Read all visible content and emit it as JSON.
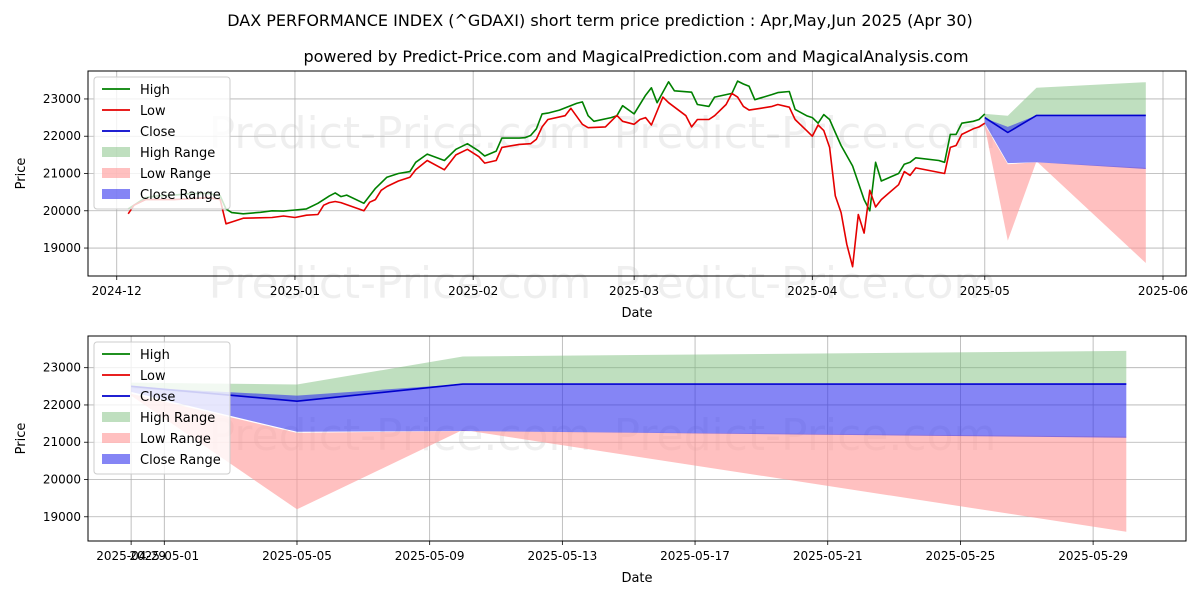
{
  "title": "DAX PERFORMANCE INDEX (^GDAXI) short term price prediction : Apr,May,Jun 2025 (Apr 30)",
  "subtitle": "powered by Predict-Price.com and MagicalPrediction.com and MagicalAnalysis.com",
  "watermark": "Predict-Price.com",
  "colors": {
    "high": "#008000",
    "low": "#e50000",
    "close": "#0000cc",
    "high_range": "#7fbf7f",
    "low_range": "#ff9999",
    "close_range": "#3333ee"
  },
  "chart_data": [
    {
      "type": "line",
      "name": "history-and-forecast",
      "xlabel": "Date",
      "ylabel": "Price",
      "x_ticks": [
        {
          "day": 0,
          "label": "2024-12"
        },
        {
          "day": 31,
          "label": "2025-01"
        },
        {
          "day": 62,
          "label": "2025-02"
        },
        {
          "day": 90,
          "label": "2025-03"
        },
        {
          "day": 121,
          "label": "2025-04"
        },
        {
          "day": 151,
          "label": "2025-05"
        },
        {
          "day": 182,
          "label": "2025-06"
        }
      ],
      "y_ticks": [
        19000,
        20000,
        21000,
        22000,
        23000
      ],
      "xlim": [
        -5,
        186
      ],
      "ylim": [
        18250,
        23750
      ],
      "legend": [
        "High",
        "Low",
        "Close",
        "High Range",
        "Low Range",
        "Close Range"
      ],
      "high_series": [
        [
          2,
          20050
        ],
        [
          5,
          20350
        ],
        [
          7,
          20400
        ],
        [
          10,
          20420
        ],
        [
          13,
          20460
        ],
        [
          16,
          20470
        ],
        [
          18,
          20400
        ],
        [
          19,
          20050
        ],
        [
          20,
          19950
        ],
        [
          22,
          19920
        ],
        [
          25,
          19960
        ],
        [
          27,
          20000
        ],
        [
          29,
          19990
        ],
        [
          31,
          20020
        ],
        [
          33,
          20050
        ],
        [
          35,
          20200
        ],
        [
          37,
          20400
        ],
        [
          38,
          20480
        ],
        [
          39,
          20380
        ],
        [
          40,
          20420
        ],
        [
          43,
          20200
        ],
        [
          45,
          20600
        ],
        [
          47,
          20900
        ],
        [
          49,
          21000
        ],
        [
          51,
          21050
        ],
        [
          52,
          21300
        ],
        [
          54,
          21520
        ],
        [
          57,
          21350
        ],
        [
          59,
          21650
        ],
        [
          61,
          21800
        ],
        [
          63,
          21600
        ],
        [
          64,
          21470
        ],
        [
          66,
          21600
        ],
        [
          67,
          21950
        ],
        [
          70,
          21950
        ],
        [
          71,
          21960
        ],
        [
          72,
          22020
        ],
        [
          73,
          22200
        ],
        [
          74,
          22600
        ],
        [
          75,
          22620
        ],
        [
          77,
          22700
        ],
        [
          80,
          22880
        ],
        [
          81,
          22920
        ],
        [
          82,
          22550
        ],
        [
          83,
          22400
        ],
        [
          86,
          22500
        ],
        [
          87,
          22550
        ],
        [
          88,
          22820
        ],
        [
          90,
          22600
        ],
        [
          92,
          23100
        ],
        [
          93,
          23300
        ],
        [
          94,
          22900
        ],
        [
          96,
          23460
        ],
        [
          97,
          23220
        ],
        [
          100,
          23180
        ],
        [
          101,
          22850
        ],
        [
          103,
          22800
        ],
        [
          104,
          23050
        ],
        [
          107,
          23150
        ],
        [
          108,
          23480
        ],
        [
          109,
          23400
        ],
        [
          110,
          23340
        ],
        [
          111,
          22980
        ],
        [
          114,
          23120
        ],
        [
          115,
          23170
        ],
        [
          117,
          23200
        ],
        [
          118,
          22720
        ],
        [
          120,
          22550
        ],
        [
          121,
          22500
        ],
        [
          122,
          22350
        ],
        [
          123,
          22580
        ],
        [
          124,
          22450
        ],
        [
          125,
          22100
        ],
        [
          126,
          21750
        ],
        [
          128,
          21200
        ],
        [
          130,
          20300
        ],
        [
          131,
          20000
        ],
        [
          132,
          21300
        ],
        [
          133,
          20800
        ],
        [
          136,
          21000
        ],
        [
          137,
          21250
        ],
        [
          138,
          21300
        ],
        [
          139,
          21420
        ],
        [
          143,
          21350
        ],
        [
          144,
          21300
        ],
        [
          145,
          22050
        ],
        [
          146,
          22050
        ],
        [
          147,
          22350
        ],
        [
          149,
          22400
        ],
        [
          150,
          22450
        ],
        [
          151,
          22600
        ]
      ],
      "low_series": [
        [
          2,
          19920
        ],
        [
          3,
          20150
        ],
        [
          5,
          20300
        ],
        [
          10,
          20300
        ],
        [
          16,
          20350
        ],
        [
          18,
          20300
        ],
        [
          19,
          19650
        ],
        [
          20,
          19700
        ],
        [
          22,
          19800
        ],
        [
          27,
          19820
        ],
        [
          29,
          19860
        ],
        [
          31,
          19820
        ],
        [
          33,
          19880
        ],
        [
          35,
          19900
        ],
        [
          36,
          20150
        ],
        [
          37,
          20220
        ],
        [
          38,
          20250
        ],
        [
          39,
          20220
        ],
        [
          43,
          20000
        ],
        [
          44,
          20230
        ],
        [
          45,
          20300
        ],
        [
          46,
          20550
        ],
        [
          47,
          20650
        ],
        [
          49,
          20800
        ],
        [
          51,
          20900
        ],
        [
          52,
          21100
        ],
        [
          54,
          21350
        ],
        [
          57,
          21100
        ],
        [
          59,
          21500
        ],
        [
          61,
          21650
        ],
        [
          63,
          21450
        ],
        [
          64,
          21280
        ],
        [
          66,
          21350
        ],
        [
          67,
          21700
        ],
        [
          70,
          21780
        ],
        [
          72,
          21800
        ],
        [
          73,
          21920
        ],
        [
          74,
          22250
        ],
        [
          75,
          22450
        ],
        [
          78,
          22550
        ],
        [
          79,
          22750
        ],
        [
          81,
          22320
        ],
        [
          82,
          22230
        ],
        [
          85,
          22250
        ],
        [
          87,
          22560
        ],
        [
          88,
          22400
        ],
        [
          90,
          22320
        ],
        [
          91,
          22450
        ],
        [
          92,
          22500
        ],
        [
          93,
          22300
        ],
        [
          95,
          23050
        ],
        [
          96,
          22900
        ],
        [
          99,
          22550
        ],
        [
          100,
          22250
        ],
        [
          101,
          22450
        ],
        [
          103,
          22450
        ],
        [
          104,
          22550
        ],
        [
          106,
          22850
        ],
        [
          107,
          23150
        ],
        [
          108,
          23050
        ],
        [
          109,
          22800
        ],
        [
          110,
          22700
        ],
        [
          112,
          22750
        ],
        [
          114,
          22800
        ],
        [
          115,
          22850
        ],
        [
          117,
          22780
        ],
        [
          118,
          22450
        ],
        [
          120,
          22150
        ],
        [
          121,
          22000
        ],
        [
          122,
          22300
        ],
        [
          123,
          22150
        ],
        [
          124,
          21700
        ],
        [
          125,
          20400
        ],
        [
          126,
          19950
        ],
        [
          127,
          19100
        ],
        [
          128,
          18500
        ],
        [
          129,
          19900
        ],
        [
          130,
          19400
        ],
        [
          131,
          20550
        ],
        [
          132,
          20100
        ],
        [
          133,
          20300
        ],
        [
          136,
          20700
        ],
        [
          137,
          21050
        ],
        [
          138,
          20950
        ],
        [
          139,
          21150
        ],
        [
          144,
          21000
        ],
        [
          145,
          21700
        ],
        [
          146,
          21750
        ],
        [
          147,
          22050
        ],
        [
          149,
          22200
        ],
        [
          150,
          22250
        ],
        [
          151,
          22350
        ]
      ],
      "close_forecast": [
        [
          151,
          22500
        ],
        [
          155,
          22100
        ],
        [
          160,
          22560
        ],
        [
          179,
          22560
        ]
      ],
      "high_range": {
        "upper": [
          [
            151,
            22600
          ],
          [
            155,
            22550
          ],
          [
            160,
            23300
          ],
          [
            179,
            23450
          ]
        ],
        "lower": [
          [
            151,
            22450
          ],
          [
            155,
            22100
          ],
          [
            160,
            22580
          ],
          [
            179,
            22580
          ]
        ]
      },
      "low_range": {
        "upper": [
          [
            151,
            22300
          ],
          [
            155,
            21250
          ],
          [
            160,
            21300
          ],
          [
            179,
            21150
          ]
        ],
        "lower": [
          [
            151,
            22250
          ],
          [
            155,
            19200
          ],
          [
            160,
            21330
          ],
          [
            179,
            18600
          ]
        ]
      },
      "close_range": {
        "upper": [
          [
            151,
            22480
          ],
          [
            155,
            22250
          ],
          [
            160,
            22560
          ],
          [
            179,
            22580
          ]
        ],
        "lower": [
          [
            151,
            22350
          ],
          [
            155,
            21280
          ],
          [
            160,
            21300
          ],
          [
            179,
            21120
          ]
        ]
      }
    },
    {
      "type": "line",
      "name": "forecast-zoom",
      "xlabel": "Date",
      "ylabel": "Price",
      "x_ticks": [
        {
          "day": -1,
          "label": "2025-04-29"
        },
        {
          "day": 0,
          "label": "2025-05-01"
        },
        {
          "day": 4,
          "label": "2025-05-05"
        },
        {
          "day": 8,
          "label": "2025-05-09"
        },
        {
          "day": 12,
          "label": "2025-05-13"
        },
        {
          "day": 16,
          "label": "2025-05-17"
        },
        {
          "day": 20,
          "label": "2025-05-21"
        },
        {
          "day": 24,
          "label": "2025-05-25"
        },
        {
          "day": 28,
          "label": "2025-05-29"
        }
      ],
      "y_ticks": [
        19000,
        20000,
        21000,
        22000,
        23000
      ],
      "xlim": [
        -2.3,
        30.8
      ],
      "ylim": [
        18350,
        23850
      ],
      "legend": [
        "High",
        "Low",
        "Close",
        "High Range",
        "Low Range",
        "Close Range"
      ],
      "close_forecast": [
        [
          -1,
          22500
        ],
        [
          4,
          22100
        ],
        [
          9,
          22560
        ],
        [
          29,
          22560
        ]
      ],
      "high_range": {
        "upper": [
          [
            -1,
            22600
          ],
          [
            4,
            22550
          ],
          [
            9,
            23300
          ],
          [
            29,
            23450
          ]
        ],
        "lower": [
          [
            -1,
            22450
          ],
          [
            4,
            22100
          ],
          [
            9,
            22580
          ],
          [
            29,
            22580
          ]
        ]
      },
      "low_range": {
        "upper": [
          [
            -1,
            22300
          ],
          [
            4,
            21250
          ],
          [
            9,
            21300
          ],
          [
            29,
            21150
          ]
        ],
        "lower": [
          [
            -1,
            22250
          ],
          [
            4,
            19200
          ],
          [
            9,
            21330
          ],
          [
            29,
            18600
          ]
        ]
      },
      "close_range": {
        "upper": [
          [
            -1,
            22480
          ],
          [
            4,
            22250
          ],
          [
            9,
            22560
          ],
          [
            29,
            22580
          ]
        ],
        "lower": [
          [
            -1,
            22350
          ],
          [
            4,
            21280
          ],
          [
            9,
            21300
          ],
          [
            29,
            21120
          ]
        ]
      }
    }
  ]
}
